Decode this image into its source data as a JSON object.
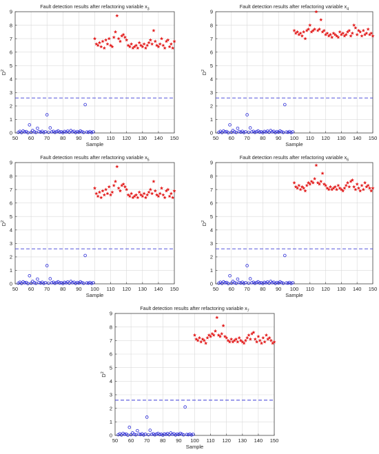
{
  "figure": {
    "colors": {
      "normal": "#2a2ad8",
      "fault": "#e21a1a",
      "threshold": "#3a3ad6",
      "axis": "#444444",
      "grid": "#d9d9d9"
    }
  },
  "chart_data": [
    {
      "type": "scatter",
      "title": "Fault detection results after refactoring variable x",
      "title_subscript": "3",
      "xlabel": "Sample",
      "ylabel": "D",
      "ylabel_superscript": "2",
      "xlim": [
        50,
        150
      ],
      "ylim": [
        0,
        9
      ],
      "xticks": [
        50,
        60,
        70,
        80,
        90,
        100,
        110,
        120,
        130,
        140,
        150
      ],
      "yticks": [
        0,
        1,
        2,
        3,
        4,
        5,
        6,
        7,
        8,
        9
      ],
      "grid": true,
      "threshold": 2.6,
      "normal_x_start": 52,
      "normal_values": [
        0.05,
        0.12,
        0.03,
        0.15,
        0.08,
        0.1,
        0.02,
        0.6,
        0.05,
        0.18,
        0.08,
        0.04,
        0.35,
        0.1,
        0.06,
        0.12,
        0.03,
        0.09,
        1.35,
        0.05,
        0.38,
        0.08,
        0.12,
        0.04,
        0.1,
        0.15,
        0.06,
        0.09,
        0.02,
        0.11,
        0.07,
        0.14,
        0.05,
        0.18,
        0.08,
        0.12,
        0.03,
        0.1,
        0.06,
        0.15,
        0.09,
        0.04,
        2.1,
        0.07,
        0.05,
        0.1,
        0.03,
        0.08
      ],
      "fault_x_start": 100,
      "fault_values": [
        7.0,
        6.6,
        6.5,
        6.7,
        6.4,
        6.8,
        6.3,
        6.9,
        6.6,
        7.0,
        6.5,
        6.4,
        7.1,
        7.5,
        8.7,
        7.0,
        6.8,
        7.2,
        7.3,
        7.1,
        6.9,
        6.5,
        6.4,
        6.6,
        6.3,
        6.4,
        6.5,
        6.3,
        6.7,
        6.5,
        6.4,
        6.6,
        6.3,
        6.5,
        6.7,
        6.9,
        6.6,
        7.6,
        6.8,
        6.5,
        6.4,
        6.6,
        7.0,
        6.5,
        6.3,
        6.8,
        6.9,
        6.4,
        6.6,
        6.3,
        6.8
      ]
    },
    {
      "type": "scatter",
      "title": "Fault detection results after refactoring variable x",
      "title_subscript": "4",
      "xlabel": "Sample",
      "ylabel": "D",
      "ylabel_superscript": "2",
      "xlim": [
        50,
        150
      ],
      "ylim": [
        0,
        9
      ],
      "xticks": [
        50,
        60,
        70,
        80,
        90,
        100,
        110,
        120,
        130,
        140,
        150
      ],
      "yticks": [
        0,
        1,
        2,
        3,
        4,
        5,
        6,
        7,
        8,
        9
      ],
      "grid": true,
      "threshold": 2.6,
      "normal_x_start": 52,
      "normal_values": [
        0.05,
        0.12,
        0.03,
        0.15,
        0.08,
        0.1,
        0.02,
        0.6,
        0.05,
        0.18,
        0.08,
        0.04,
        0.35,
        0.1,
        0.06,
        0.12,
        0.03,
        0.09,
        1.35,
        0.05,
        0.38,
        0.08,
        0.12,
        0.04,
        0.1,
        0.15,
        0.06,
        0.09,
        0.02,
        0.11,
        0.07,
        0.14,
        0.05,
        0.18,
        0.08,
        0.12,
        0.03,
        0.1,
        0.06,
        0.15,
        0.09,
        0.04,
        2.1,
        0.07,
        0.05,
        0.1,
        0.03,
        0.08
      ],
      "fault_x_start": 100,
      "fault_values": [
        7.6,
        7.4,
        7.5,
        7.3,
        7.4,
        7.2,
        7.5,
        7.0,
        7.6,
        7.7,
        8.0,
        7.5,
        7.6,
        7.7,
        9.0,
        7.6,
        7.7,
        8.4,
        7.5,
        7.6,
        7.3,
        7.4,
        7.2,
        7.3,
        7.1,
        7.4,
        7.3,
        7.2,
        7.1,
        7.5,
        7.3,
        7.4,
        7.2,
        7.3,
        7.5,
        7.6,
        7.2,
        7.4,
        8.0,
        7.8,
        7.3,
        7.6,
        7.5,
        7.2,
        7.6,
        7.3,
        7.4,
        7.7,
        7.3,
        7.4,
        7.2
      ]
    },
    {
      "type": "scatter",
      "title": "Fault detection results after refactoring variable x",
      "title_subscript": "5",
      "xlabel": "Sample",
      "ylabel": "D",
      "ylabel_superscript": "2",
      "xlim": [
        50,
        150
      ],
      "ylim": [
        0,
        9
      ],
      "xticks": [
        50,
        60,
        70,
        80,
        90,
        100,
        110,
        120,
        130,
        140,
        150
      ],
      "yticks": [
        0,
        1,
        2,
        3,
        4,
        5,
        6,
        7,
        8,
        9
      ],
      "grid": true,
      "threshold": 2.6,
      "normal_x_start": 52,
      "normal_values": [
        0.05,
        0.12,
        0.03,
        0.15,
        0.08,
        0.1,
        0.02,
        0.6,
        0.05,
        0.18,
        0.08,
        0.04,
        0.35,
        0.1,
        0.06,
        0.12,
        0.03,
        0.09,
        1.35,
        0.05,
        0.38,
        0.08,
        0.12,
        0.04,
        0.1,
        0.15,
        0.06,
        0.09,
        0.02,
        0.11,
        0.07,
        0.14,
        0.05,
        0.18,
        0.08,
        0.12,
        0.03,
        0.1,
        0.06,
        0.15,
        0.09,
        0.04,
        2.1,
        0.07,
        0.05,
        0.1,
        0.03,
        0.08
      ],
      "fault_x_start": 100,
      "fault_values": [
        7.1,
        6.7,
        6.5,
        6.8,
        6.4,
        6.9,
        6.6,
        7.0,
        6.7,
        7.2,
        6.6,
        6.8,
        7.3,
        7.6,
        8.7,
        7.1,
        6.9,
        7.3,
        7.4,
        7.2,
        7.0,
        6.6,
        6.5,
        6.7,
        6.4,
        6.5,
        6.6,
        6.4,
        6.8,
        6.6,
        6.5,
        6.7,
        6.4,
        6.6,
        6.8,
        7.0,
        6.7,
        7.6,
        6.9,
        6.6,
        6.5,
        6.7,
        7.1,
        6.6,
        6.4,
        6.9,
        7.0,
        6.5,
        6.7,
        6.4,
        6.9
      ]
    },
    {
      "type": "scatter",
      "title": "Fault detection results after refactoring variable x",
      "title_subscript": "6",
      "xlabel": "Sample",
      "ylabel": "D",
      "ylabel_superscript": "2",
      "xlim": [
        50,
        150
      ],
      "ylim": [
        0,
        9
      ],
      "xticks": [
        50,
        60,
        70,
        80,
        90,
        100,
        110,
        120,
        130,
        140,
        150
      ],
      "yticks": [
        0,
        1,
        2,
        3,
        4,
        5,
        6,
        7,
        8,
        9
      ],
      "grid": true,
      "threshold": 2.6,
      "normal_x_start": 52,
      "normal_values": [
        0.05,
        0.12,
        0.03,
        0.15,
        0.08,
        0.1,
        0.02,
        0.6,
        0.05,
        0.18,
        0.08,
        0.04,
        0.35,
        0.1,
        0.06,
        0.12,
        0.03,
        0.09,
        1.35,
        0.05,
        0.38,
        0.08,
        0.12,
        0.04,
        0.1,
        0.15,
        0.06,
        0.09,
        0.02,
        0.11,
        0.07,
        0.14,
        0.05,
        0.18,
        0.08,
        0.12,
        0.03,
        0.1,
        0.06,
        0.15,
        0.09,
        0.04,
        2.1,
        0.07,
        0.05,
        0.1,
        0.03,
        0.08
      ],
      "fault_x_start": 100,
      "fault_values": [
        7.5,
        7.2,
        7.1,
        7.3,
        7.0,
        7.2,
        7.1,
        6.9,
        7.3,
        7.5,
        7.4,
        7.6,
        7.5,
        7.8,
        8.8,
        7.5,
        7.4,
        7.6,
        8.2,
        7.4,
        7.3,
        7.1,
        7.0,
        7.2,
        7.0,
        7.1,
        7.2,
        7.0,
        7.3,
        7.1,
        7.0,
        6.9,
        7.1,
        7.3,
        7.5,
        7.2,
        7.6,
        7.7,
        7.2,
        7.0,
        7.4,
        7.1,
        6.9,
        7.3,
        7.0,
        7.5,
        7.2,
        7.3,
        7.1,
        6.9,
        7.1
      ]
    },
    {
      "type": "scatter",
      "title": "Fault detection results after refactoring variable x",
      "title_subscript": "7",
      "xlabel": "Sample",
      "ylabel": "D",
      "ylabel_superscript": "2",
      "xlim": [
        50,
        150
      ],
      "ylim": [
        0,
        9
      ],
      "xticks": [
        50,
        60,
        70,
        80,
        90,
        100,
        110,
        120,
        130,
        140,
        150
      ],
      "yticks": [
        0,
        1,
        2,
        3,
        4,
        5,
        6,
        7,
        8,
        9
      ],
      "grid": true,
      "threshold": 2.6,
      "normal_x_start": 52,
      "normal_values": [
        0.05,
        0.12,
        0.03,
        0.15,
        0.08,
        0.1,
        0.02,
        0.6,
        0.05,
        0.18,
        0.08,
        0.04,
        0.35,
        0.1,
        0.06,
        0.12,
        0.03,
        0.09,
        1.35,
        0.05,
        0.38,
        0.08,
        0.12,
        0.04,
        0.1,
        0.15,
        0.06,
        0.09,
        0.02,
        0.11,
        0.07,
        0.14,
        0.05,
        0.18,
        0.08,
        0.12,
        0.03,
        0.1,
        0.06,
        0.15,
        0.09,
        0.04,
        2.1,
        0.07,
        0.05,
        0.1,
        0.03,
        0.08
      ],
      "fault_x_start": 100,
      "fault_values": [
        7.4,
        7.1,
        7.0,
        7.2,
        6.9,
        7.1,
        7.0,
        6.8,
        7.2,
        7.4,
        7.3,
        7.5,
        7.4,
        7.7,
        8.7,
        7.4,
        7.3,
        7.5,
        8.1,
        7.3,
        7.2,
        7.0,
        6.9,
        7.1,
        6.9,
        7.0,
        7.1,
        6.9,
        7.2,
        7.0,
        6.9,
        6.8,
        7.0,
        7.2,
        7.4,
        7.1,
        7.5,
        7.6,
        7.1,
        6.9,
        7.3,
        7.0,
        6.8,
        7.2,
        6.9,
        7.4,
        7.1,
        7.2,
        7.0,
        6.8,
        6.9
      ]
    }
  ]
}
